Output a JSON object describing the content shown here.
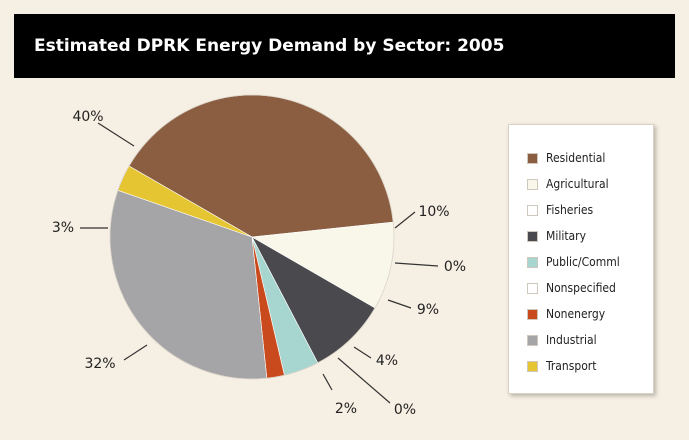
{
  "chart_data": {
    "type": "pie",
    "title": "Estimated DPRK Energy Demand by Sector: 2005",
    "legend_position": "right",
    "slices": [
      {
        "name": "Residential",
        "value": 40,
        "label": "40%",
        "color": "#8b5e42"
      },
      {
        "name": "Agricultural",
        "value": 10,
        "label": "10%",
        "color": "#f8f7e9"
      },
      {
        "name": "Fisheries",
        "value": 0,
        "label": "0%",
        "color": "#ffffff"
      },
      {
        "name": "Military",
        "value": 9,
        "label": "9%",
        "color": "#4a4a4e"
      },
      {
        "name": "Public/Comml",
        "value": 4,
        "label": "4%",
        "color": "#a7d6d0"
      },
      {
        "name": "Nonspecified",
        "value": 0,
        "label": "0%",
        "color": "#ffffff"
      },
      {
        "name": "Nonenergy",
        "value": 2,
        "label": "2%",
        "color": "#c94a1c"
      },
      {
        "name": "Industrial",
        "value": 32,
        "label": "32%",
        "color": "#a5a5a8"
      },
      {
        "name": "Transport",
        "value": 3,
        "label": "3%",
        "color": "#e5c531"
      }
    ]
  }
}
